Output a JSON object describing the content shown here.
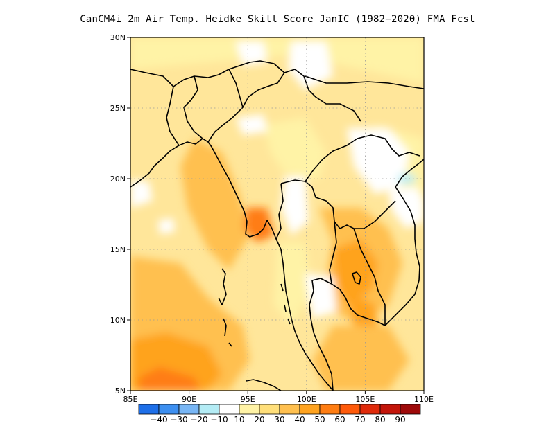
{
  "title": "CanCM4i  2m Air Temp. Heidke Skill Score JanIC (1982−2020) FMA Fcst",
  "lon_ticks": [
    "85E",
    "90E",
    "95E",
    "100E",
    "105E",
    "110E"
  ],
  "lat_ticks": [
    "30N",
    "25N",
    "20N",
    "15N",
    "10N",
    "5N"
  ],
  "colorbar": {
    "colors": [
      "#1e6fe8",
      "#3d8ff0",
      "#78b6f5",
      "#b4ecf5",
      "#ffffff",
      "#fff3a6",
      "#ffdf7a",
      "#ffc04f",
      "#ffa31f",
      "#ff7d12",
      "#ff5a0a",
      "#e02a0a",
      "#c3150a",
      "#9e0a0a"
    ],
    "labels": [
      "−40",
      "−30",
      "−20",
      "−10",
      "10",
      "20",
      "30",
      "40",
      "50",
      "60",
      "70",
      "80",
      "90"
    ]
  },
  "colors": {
    "background": "#ffffff",
    "land_base": "#ffe69a",
    "frame": "#000000",
    "grid": "#999999"
  }
}
